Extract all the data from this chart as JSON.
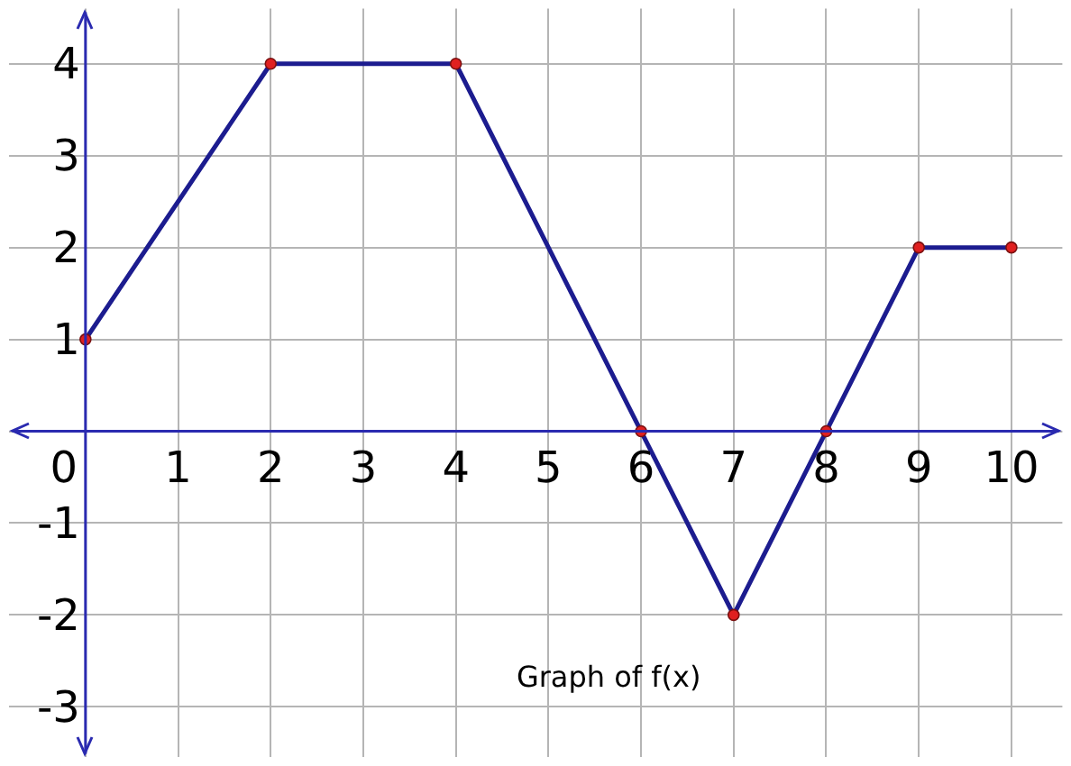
{
  "chart_data": {
    "type": "line",
    "annotations": [
      "Graph of f(x)"
    ],
    "x": [
      0,
      2,
      4,
      6,
      7,
      8,
      9,
      10
    ],
    "series": [
      {
        "color": "#1c1c8f",
        "values": [
          1,
          4,
          4,
          0,
          -2,
          0,
          2,
          2
        ]
      }
    ],
    "xlim": [
      -0.83,
      10.55
    ],
    "ylim": [
      -3.55,
      4.6
    ],
    "xticks": [
      0,
      1,
      2,
      3,
      4,
      5,
      6,
      7,
      8,
      9,
      10
    ],
    "yticks": [
      -3,
      -2,
      -1,
      {
        "value": 0,
        "label": null
      },
      1,
      2,
      3,
      4
    ],
    "grid": true,
    "legend": false,
    "marker": "circle",
    "line_style": "solid"
  }
}
